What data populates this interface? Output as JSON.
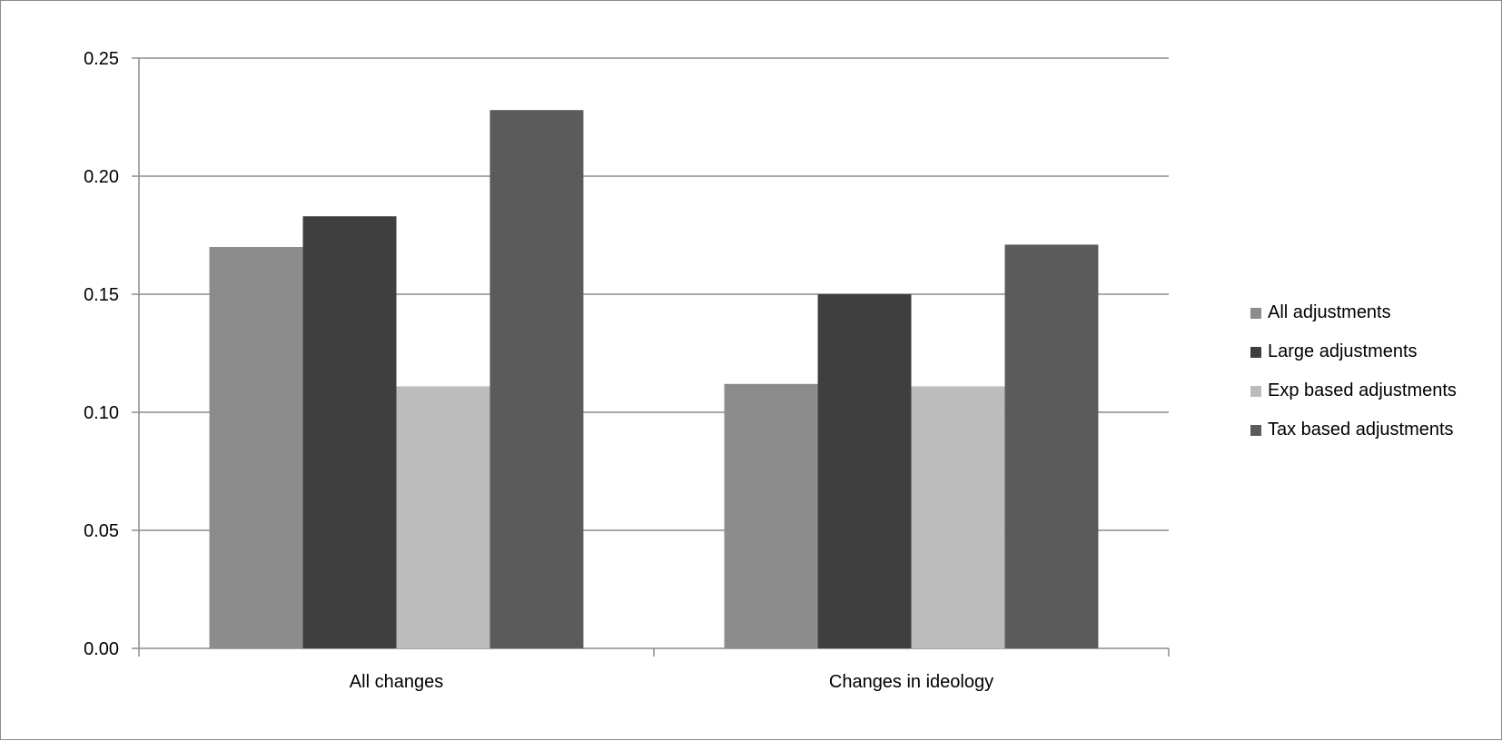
{
  "chart_data": {
    "type": "bar",
    "title": "",
    "xlabel": "",
    "ylabel": "",
    "categories": [
      "All changes",
      "Changes in ideology"
    ],
    "series": [
      {
        "name": "All adjustments",
        "color": "#8c8c8c",
        "values": [
          0.17,
          0.112
        ]
      },
      {
        "name": "Large adjustments",
        "color": "#3f3f3f",
        "values": [
          0.183,
          0.15
        ]
      },
      {
        "name": "Exp based adjustments",
        "color": "#bcbcbc",
        "values": [
          0.111,
          0.111
        ]
      },
      {
        "name": "Tax based adjustments",
        "color": "#5b5b5b",
        "values": [
          0.228,
          0.171
        ]
      }
    ],
    "ylim": [
      0,
      0.25
    ],
    "yticks": [
      "0.00",
      "0.05",
      "0.10",
      "0.15",
      "0.20",
      "0.25"
    ],
    "grid": true,
    "legend_position": "right"
  }
}
